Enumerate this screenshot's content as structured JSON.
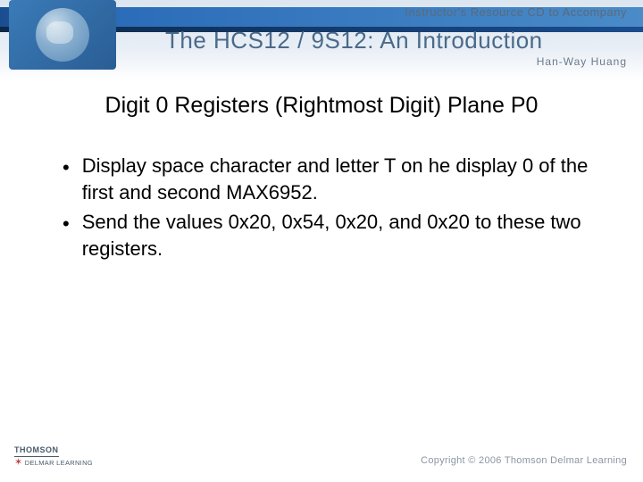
{
  "header": {
    "subtitle": "Instructor's Resource CD to Accompany",
    "title": "The HCS12 / 9S12: An Introduction",
    "author": "Han-Way Huang"
  },
  "slide": {
    "title": "Digit 0 Registers (Rightmost Digit) Plane P0",
    "bullets": [
      "Display space character and letter T on he display 0 of the first and second MAX6952.",
      "Send the values 0x20, 0x54, 0x20, and 0x20 to these two registers."
    ]
  },
  "footer": {
    "brand_top": "THOMSON",
    "brand_bottom": "DELMAR LEARNING",
    "copyright": "Copyright © 2006 Thomson Delmar Learning"
  }
}
